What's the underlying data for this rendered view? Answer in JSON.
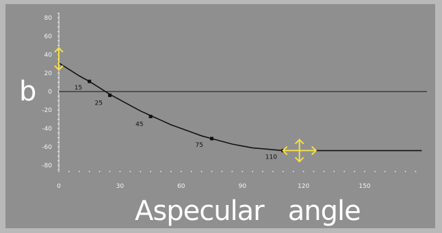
{
  "chart_data": {
    "type": "line",
    "title": "",
    "xlabel": "Aspecular   angle",
    "ylabel": "b",
    "xlim": [
      0,
      180
    ],
    "ylim": [
      -85,
      85
    ],
    "x_ticks": [
      0,
      30,
      60,
      90,
      120,
      150
    ],
    "x_tick_labels": [
      "0",
      "30",
      "60",
      "90",
      "120",
      "150"
    ],
    "y_ticks": [
      80,
      60,
      40,
      20,
      0,
      -20,
      -40,
      -60,
      -80
    ],
    "y_tick_labels": [
      "80",
      "60",
      "40",
      "20",
      "0",
      "-20",
      "-40",
      "-60",
      "-80"
    ],
    "grid": false,
    "zero_line": true,
    "curve": {
      "x": [
        0,
        5,
        10,
        15,
        20,
        25,
        30,
        35,
        40,
        45,
        50,
        55,
        60,
        65,
        70,
        75,
        80,
        85,
        90,
        95,
        100,
        105,
        110,
        115,
        120,
        125,
        130,
        135,
        140,
        145,
        150,
        155,
        160,
        165,
        170,
        178
      ],
      "y": [
        31,
        24,
        17,
        11,
        4,
        -3,
        -9,
        -15,
        -21,
        -26,
        -31,
        -36,
        -40,
        -44,
        -48,
        -51,
        -54,
        -57,
        -59,
        -61,
        -62,
        -63,
        -64,
        -64,
        -64,
        -64,
        -64,
        -64,
        -64,
        -64,
        -64,
        -64,
        -64,
        -64,
        -64,
        -64
      ]
    },
    "points": [
      {
        "x": 15,
        "y": 11,
        "label": "15"
      },
      {
        "x": 25,
        "y": -4,
        "label": "25"
      },
      {
        "x": 45,
        "y": -27,
        "label": "45"
      },
      {
        "x": 75,
        "y": -51,
        "label": "75"
      },
      {
        "x": 110,
        "y": -64,
        "label": "110"
      }
    ],
    "handles": [
      {
        "x": 0,
        "y": 31,
        "type": "vertical",
        "color": "#f5e04a"
      },
      {
        "x": 118,
        "y": -64,
        "type": "cross",
        "color": "#f5e04a"
      }
    ],
    "colors": {
      "background": "#8f8f8f",
      "frame": "#b9b9b9",
      "curve": "#111111",
      "handle": "#f5e04a"
    }
  }
}
